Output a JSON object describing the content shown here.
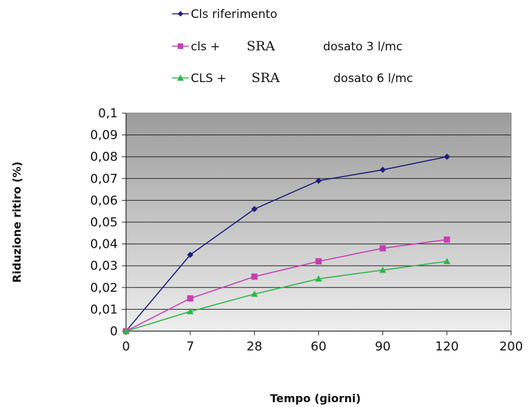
{
  "chart_data": {
    "type": "line",
    "x": [
      0,
      7,
      28,
      60,
      90,
      120
    ],
    "x_tick_labels": [
      "0",
      "7",
      "28",
      "60",
      "90",
      "120",
      "200"
    ],
    "y_tick_labels": [
      "0",
      "0,01",
      "0,02",
      "0,03",
      "0,04",
      "0,05",
      "0,06",
      "0,07",
      "0,08",
      "0,09",
      "0,1"
    ],
    "ylim": [
      0,
      0.1
    ],
    "xlabel": "Tempo (giorni)",
    "ylabel": "Riduzione ritiro (%)",
    "grid": true,
    "legend_position": "top",
    "series": [
      {
        "name": "Cls riferimento",
        "legend_parts": [
          "Cls riferimento"
        ],
        "color": "#1f1f7a",
        "marker": "diamond",
        "values": [
          0,
          0.035,
          0.056,
          0.069,
          0.074,
          0.08
        ]
      },
      {
        "name": "cls + SRA dosato 3 l/mc",
        "legend_parts": [
          "cls +",
          "SRA",
          "dosato 3 l/mc"
        ],
        "color": "#c63fb4",
        "marker": "square",
        "values": [
          0,
          0.015,
          0.025,
          0.032,
          0.038,
          0.042
        ]
      },
      {
        "name": "CLS + SRA dosato 6 l/mc",
        "legend_parts": [
          "CLS +",
          "SRA",
          "dosato 6 l/mc"
        ],
        "color": "#2fb54a",
        "marker": "triangle",
        "values": [
          0,
          0.009,
          0.017,
          0.024,
          0.028,
          0.032
        ]
      }
    ]
  }
}
